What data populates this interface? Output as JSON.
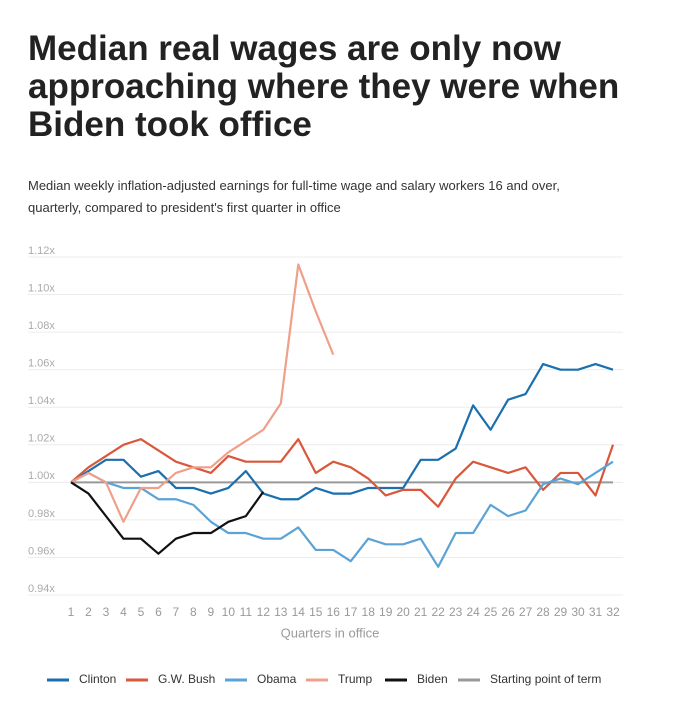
{
  "chart_data": {
    "type": "line",
    "title": "Median real wages are only now approaching where they were when Biden took office",
    "subtitle": "Median weekly inflation-adjusted earnings for full-time wage and salary workers 16 and over, quarterly, compared to president's first quarter in office",
    "x_label": "Quarters in office",
    "x": [
      1,
      2,
      3,
      4,
      5,
      6,
      7,
      8,
      9,
      10,
      11,
      12,
      13,
      14,
      15,
      16,
      17,
      18,
      19,
      20,
      21,
      22,
      23,
      24,
      25,
      26,
      27,
      28,
      29,
      30,
      31,
      32
    ],
    "xlim": [
      1,
      32
    ],
    "xticks": [
      1,
      2,
      3,
      4,
      5,
      6,
      7,
      8,
      9,
      10,
      11,
      12,
      13,
      14,
      15,
      16,
      17,
      18,
      19,
      20,
      21,
      22,
      23,
      24,
      25,
      26,
      27,
      28,
      29,
      30,
      31,
      32
    ],
    "ylim": [
      0.94,
      1.12
    ],
    "yticks": [
      {
        "value": 0.94,
        "label": "0.94x"
      },
      {
        "value": 0.96,
        "label": "0.96x"
      },
      {
        "value": 0.98,
        "label": "0.98x"
      },
      {
        "value": 1.0,
        "label": "1.00x"
      },
      {
        "value": 1.02,
        "label": "1.02x"
      },
      {
        "value": 1.04,
        "label": "1.04x"
      },
      {
        "value": 1.06,
        "label": "1.06x"
      },
      {
        "value": 1.08,
        "label": "1.08x"
      },
      {
        "value": 1.1,
        "label": "1.10x"
      },
      {
        "value": 1.12,
        "label": "1.12x"
      }
    ],
    "grid": true,
    "legend": "bottom",
    "series": [
      {
        "name": "Clinton",
        "color": "#1a6faf",
        "values": [
          1.0,
          1.006,
          1.012,
          1.012,
          1.003,
          1.006,
          0.997,
          0.997,
          0.994,
          0.997,
          1.006,
          0.994,
          0.991,
          0.991,
          0.997,
          0.994,
          0.994,
          0.997,
          0.997,
          0.997,
          1.012,
          1.012,
          1.018,
          1.041,
          1.028,
          1.044,
          1.047,
          1.063,
          1.06,
          1.06,
          1.063,
          1.06
        ]
      },
      {
        "name": "G.W. Bush",
        "color": "#d9573b",
        "values": [
          1.0,
          1.008,
          1.014,
          1.02,
          1.023,
          1.017,
          1.011,
          1.008,
          1.005,
          1.014,
          1.011,
          1.011,
          1.011,
          1.023,
          1.005,
          1.011,
          1.008,
          1.002,
          0.993,
          0.996,
          0.996,
          0.987,
          1.002,
          1.011,
          1.008,
          1.005,
          1.008,
          0.996,
          1.005,
          1.005,
          0.993,
          1.02
        ]
      },
      {
        "name": "Obama",
        "color": "#5ba3d6",
        "values": [
          1.0,
          1.005,
          1.0,
          0.997,
          0.997,
          0.991,
          0.991,
          0.988,
          0.979,
          0.973,
          0.973,
          0.97,
          0.97,
          0.976,
          0.964,
          0.964,
          0.958,
          0.97,
          0.967,
          0.967,
          0.97,
          0.955,
          0.973,
          0.973,
          0.988,
          0.982,
          0.985,
          0.999,
          1.002,
          0.999,
          1.005,
          1.011
        ]
      },
      {
        "name": "Trump",
        "color": "#eea08a",
        "values": [
          1.0,
          1.005,
          1.0,
          0.979,
          0.997,
          0.997,
          1.005,
          1.008,
          1.008,
          1.016,
          1.022,
          1.028,
          1.042,
          1.116,
          1.091,
          1.068,
          null,
          null,
          null,
          null,
          null,
          null,
          null,
          null,
          null,
          null,
          null,
          null,
          null,
          null,
          null,
          null
        ]
      },
      {
        "name": "Biden",
        "color": "#111111",
        "values": [
          1.0,
          0.994,
          0.982,
          0.97,
          0.97,
          0.962,
          0.97,
          0.973,
          0.973,
          0.979,
          0.982,
          0.995,
          null,
          null,
          null,
          null,
          null,
          null,
          null,
          null,
          null,
          null,
          null,
          null,
          null,
          null,
          null,
          null,
          null,
          null,
          null,
          null
        ]
      },
      {
        "name": "Starting point of term",
        "color": "#999999",
        "values": [
          1,
          1,
          1,
          1,
          1,
          1,
          1,
          1,
          1,
          1,
          1,
          1,
          1,
          1,
          1,
          1,
          1,
          1,
          1,
          1,
          1,
          1,
          1,
          1,
          1,
          1,
          1,
          1,
          1,
          1,
          1,
          1
        ]
      }
    ]
  }
}
